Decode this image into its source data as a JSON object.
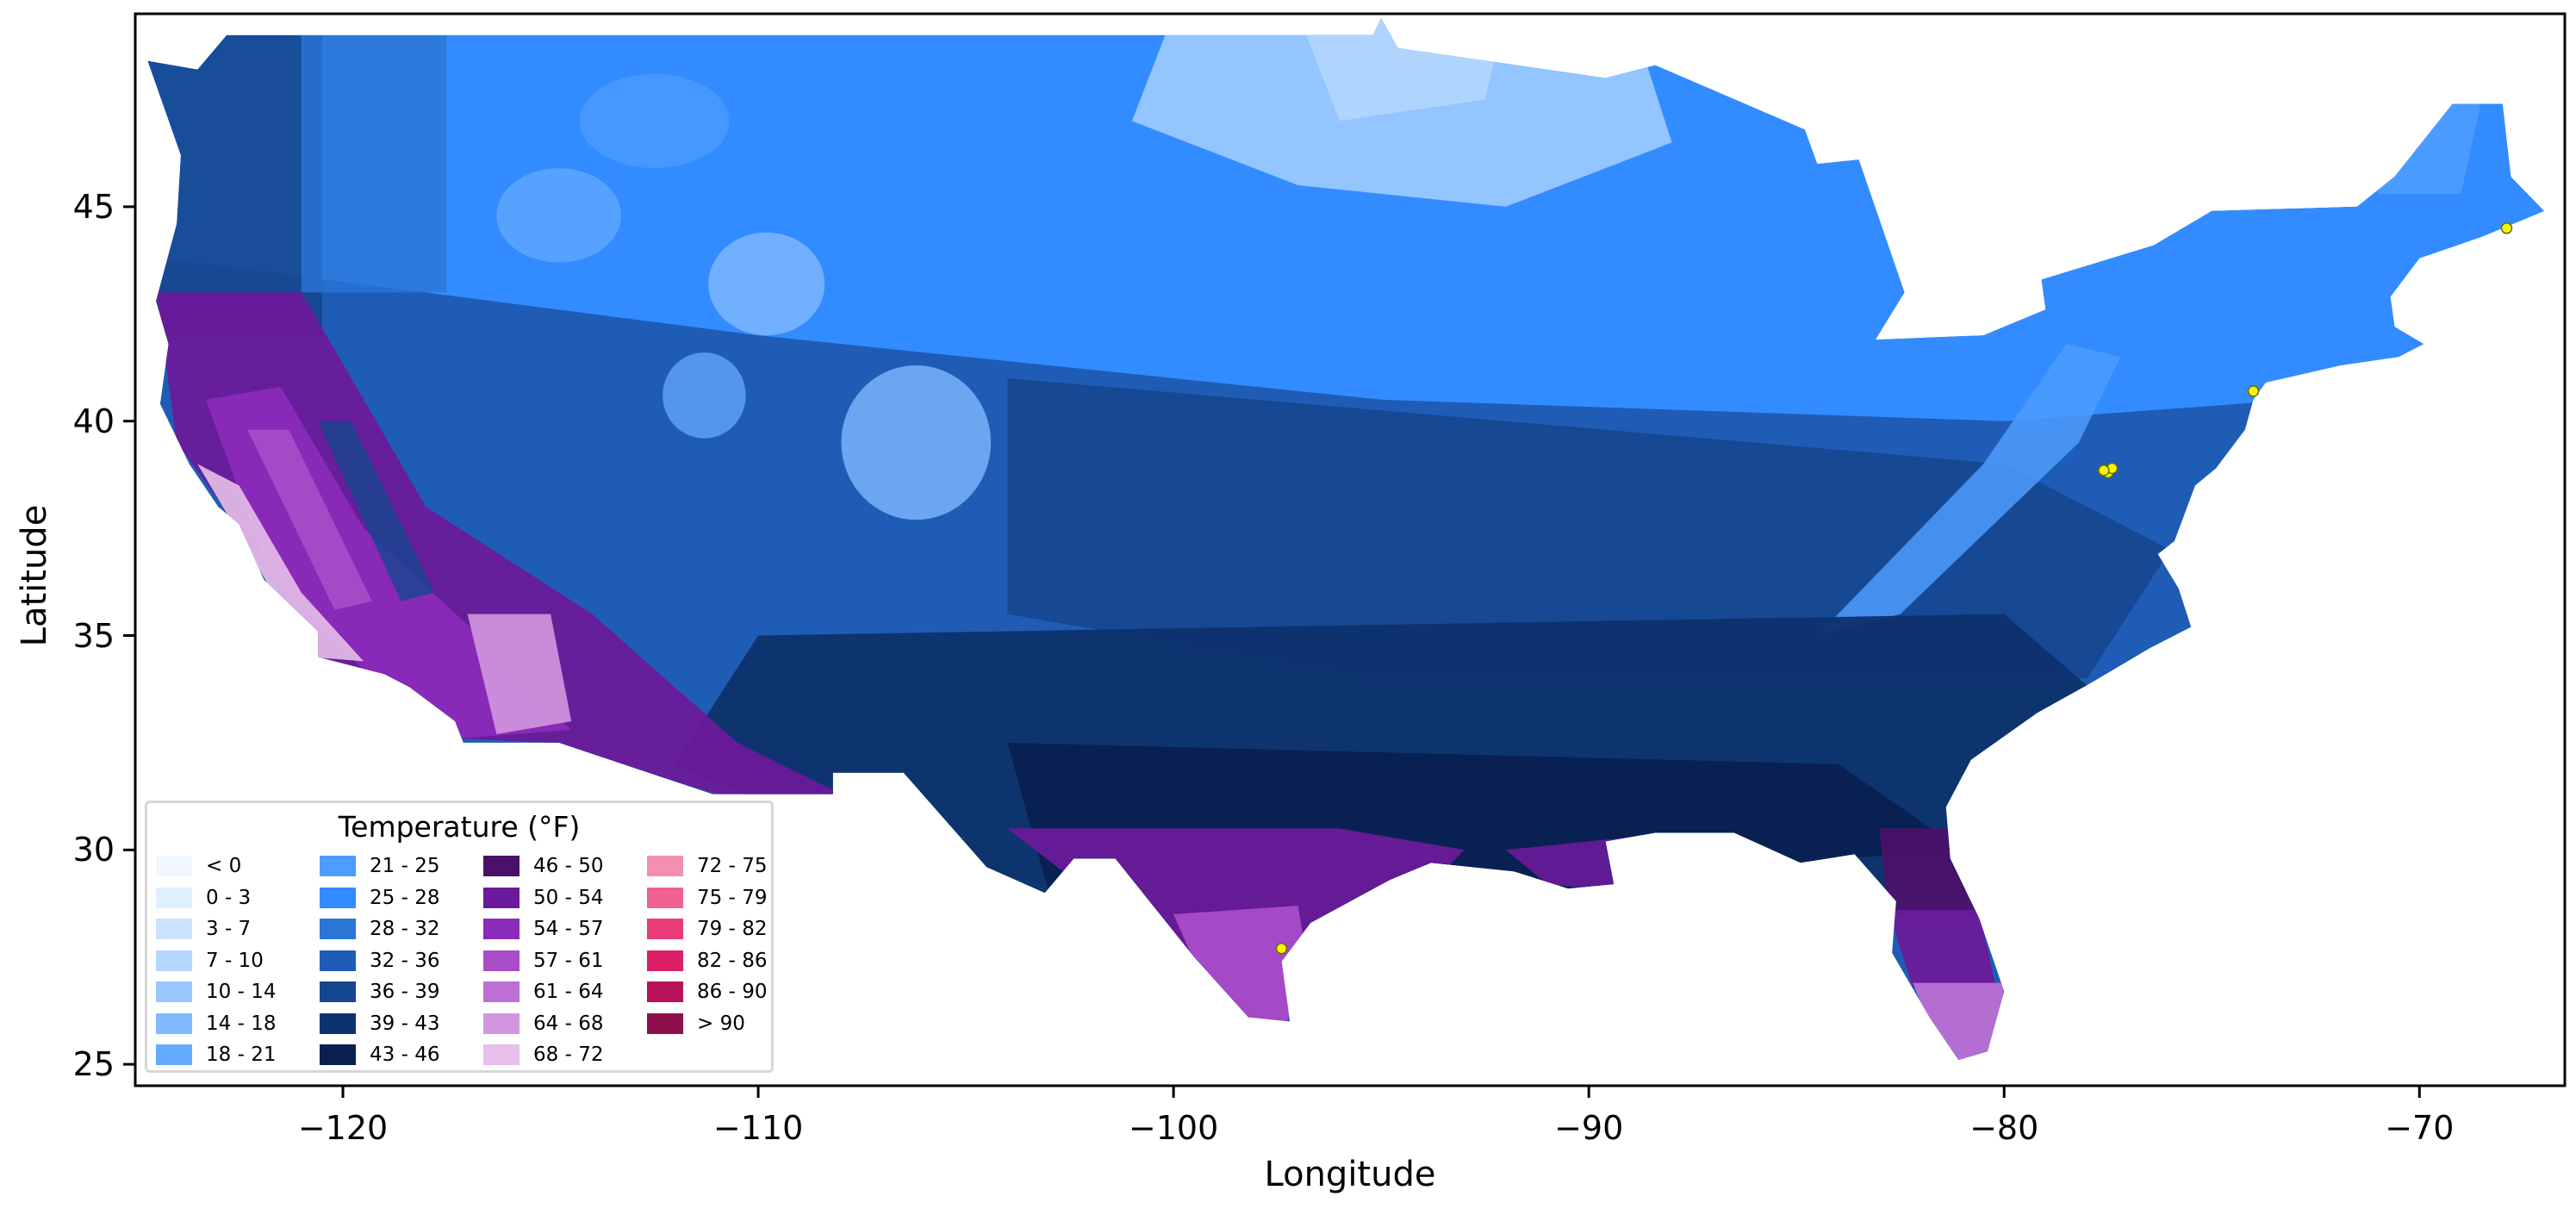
{
  "chart_data": {
    "type": "heatmap",
    "title": "",
    "xlabel": "Longitude",
    "ylabel": "Latitude",
    "xlim": [
      -125,
      -66.5
    ],
    "ylim": [
      24.5,
      49.5
    ],
    "x_ticks": [
      -120,
      -110,
      -100,
      -90,
      -80,
      -70
    ],
    "y_ticks": [
      25,
      30,
      35,
      40,
      45
    ],
    "x_tick_labels": [
      "−120",
      "−110",
      "−100",
      "−90",
      "−80",
      "−70"
    ],
    "y_tick_labels": [
      "25",
      "30",
      "35",
      "40",
      "45"
    ],
    "legend": {
      "title": "Temperature (°F)",
      "placement": "lower-left",
      "columns": 4,
      "entries": [
        {
          "label": "< 0",
          "color": "#f0f7ff"
        },
        {
          "label": "0 - 3",
          "color": "#e0efff"
        },
        {
          "label": "3 - 7",
          "color": "#cce3ff"
        },
        {
          "label": "7 - 10",
          "color": "#b3d6ff"
        },
        {
          "label": "10 - 14",
          "color": "#99c8ff"
        },
        {
          "label": "14 - 18",
          "color": "#80b9ff"
        },
        {
          "label": "18 - 21",
          "color": "#66aaff"
        },
        {
          "label": "21 - 25",
          "color": "#4d9cff"
        },
        {
          "label": "25 - 28",
          "color": "#338cff"
        },
        {
          "label": "28 - 32",
          "color": "#2b75d6"
        },
        {
          "label": "32 - 36",
          "color": "#1f5cb5"
        },
        {
          "label": "36 - 39",
          "color": "#15468f"
        },
        {
          "label": "39 - 43",
          "color": "#0e326d"
        },
        {
          "label": "43 - 46",
          "color": "#0a2150"
        },
        {
          "label": "46 - 50",
          "color": "#4a1169"
        },
        {
          "label": "50 - 54",
          "color": "#6a1a9a"
        },
        {
          "label": "54 - 57",
          "color": "#8a2ab8"
        },
        {
          "label": "57 - 61",
          "color": "#a94cc8"
        },
        {
          "label": "61 - 64",
          "color": "#bd6fd3"
        },
        {
          "label": "64 - 68",
          "color": "#d197de"
        },
        {
          "label": "68 - 72",
          "color": "#e6bfea"
        },
        {
          "label": "72 - 75",
          "color": "#f48fb1"
        },
        {
          "label": "75 - 79",
          "color": "#ef6192"
        },
        {
          "label": "79 - 82",
          "color": "#e93b7a"
        },
        {
          "label": "82 - 86",
          "color": "#dc1f66"
        },
        {
          "label": "86 - 90",
          "color": "#b8135a"
        },
        {
          "label": "> 90",
          "color": "#8e0f4c"
        }
      ]
    },
    "markers": [
      {
        "lon": -97.4,
        "lat": 27.7,
        "color": "#f5f50a"
      },
      {
        "lon": -77.5,
        "lat": 38.8,
        "color": "#f5f50a"
      },
      {
        "lon": -77.4,
        "lat": 38.9,
        "color": "#f5f50a"
      },
      {
        "lon": -77.6,
        "lat": 38.85,
        "color": "#f5f50a"
      },
      {
        "lon": -74.0,
        "lat": 40.7,
        "color": "#f5f50a"
      },
      {
        "lon": -67.9,
        "lat": 44.5,
        "color": "#f5f50a"
      }
    ]
  }
}
